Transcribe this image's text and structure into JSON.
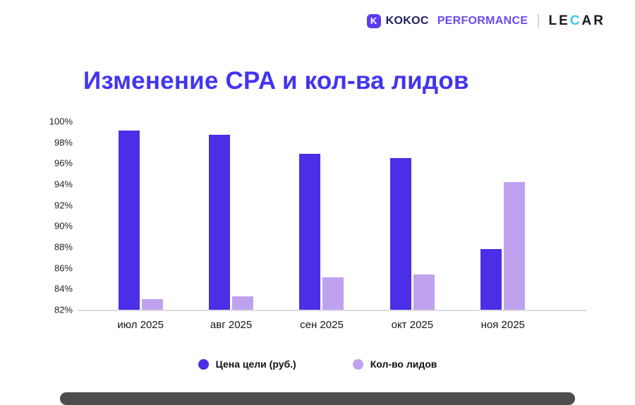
{
  "header": {
    "kokoc_word": "KOKOC",
    "kokoc_perf": "PERFORMANCE",
    "kokoc_icon_letter": "K",
    "separator": "|",
    "lecar_pre": "LE",
    "lecar_c": "C",
    "lecar_post": "AR"
  },
  "title": "Изменение CPA и кол-ва лидов",
  "chart_data": {
    "type": "bar",
    "title": "Изменение CPA и кол-ва лидов",
    "categories": [
      "июл 2025",
      "авг 2025",
      "сен 2025",
      "окт 2025",
      "ноя 2025"
    ],
    "series": [
      {
        "name": "Цена цели (руб.)",
        "color": "#4a2fe6",
        "values": [
          99.1,
          98.7,
          96.9,
          96.5,
          87.8
        ]
      },
      {
        "name": "Кол-во лидов",
        "color": "#c0a1ef",
        "values": [
          83.0,
          83.3,
          85.1,
          85.4,
          94.2
        ]
      }
    ],
    "ylim": [
      82,
      100
    ],
    "ytick_step": 2,
    "yticks": [
      "100%",
      "98%",
      "96%",
      "94%",
      "92%",
      "90%",
      "88%",
      "86%",
      "84%",
      "82%"
    ],
    "value_unit": "%",
    "grid": false,
    "legend_position": "bottom",
    "colors": {
      "accent_title": "#4334f1",
      "axis_line": "#dcdce2"
    }
  }
}
